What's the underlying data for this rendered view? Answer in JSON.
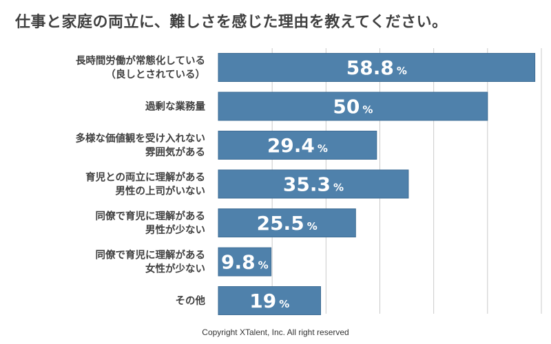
{
  "title": "仕事と家庭の両立に、難しさを感じた理由を教えてください。",
  "footer": "Copyright XTalent, Inc. All right reserved",
  "colors": {
    "bar": "#4f81ab",
    "grid": "#c9c9c9",
    "text": "#404040"
  },
  "chart_data": {
    "type": "bar",
    "orientation": "horizontal",
    "unit": "%",
    "xlim": [
      0,
      60
    ],
    "grid": true,
    "categories": [
      [
        "長時間労働が常態化している",
        "（良しとされている）"
      ],
      [
        "過剰な業務量"
      ],
      [
        "多様な価値観を受け入れない",
        "雰囲気がある"
      ],
      [
        "育児との両立に理解がある",
        "男性の上司がいない"
      ],
      [
        "同僚で育児に理解がある",
        "男性が少ない"
      ],
      [
        "同僚で育児に理解がある",
        "女性が少ない"
      ],
      [
        "その他"
      ]
    ],
    "values": [
      58.8,
      50,
      29.4,
      35.3,
      25.5,
      9.8,
      19
    ],
    "value_labels": [
      "58.8",
      "50",
      "29.4",
      "35.3",
      "25.5",
      "9.8",
      "19"
    ]
  }
}
